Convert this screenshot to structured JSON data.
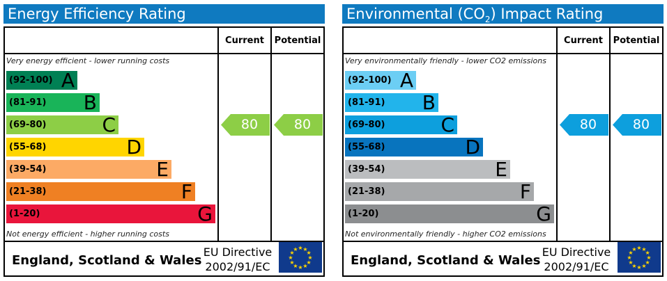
{
  "energy": {
    "title": "Energy Efficiency Rating",
    "col_current": "Current",
    "col_potential": "Potential",
    "top_text": "Very energy efficient - lower running costs",
    "bottom_text": "Not energy efficient - higher running costs",
    "bands": [
      {
        "range": "(92-100)",
        "letter": "A",
        "color": "#008054"
      },
      {
        "range": "(81-91)",
        "letter": "B",
        "color": "#19b459"
      },
      {
        "range": "(69-80)",
        "letter": "C",
        "color": "#8dce46"
      },
      {
        "range": "(55-68)",
        "letter": "D",
        "color": "#ffd500"
      },
      {
        "range": "(39-54)",
        "letter": "E",
        "color": "#fcaa65"
      },
      {
        "range": "(21-38)",
        "letter": "F",
        "color": "#ef8023"
      },
      {
        "range": "(1-20)",
        "letter": "G",
        "color": "#e9153b"
      }
    ],
    "current": {
      "value": "80",
      "band": "C",
      "color": "#8dce46"
    },
    "potential": {
      "value": "80",
      "band": "C",
      "color": "#8dce46"
    },
    "footer_country": "England, Scotland & Wales",
    "eu_line1": "EU Directive",
    "eu_line2": "2002/91/EC"
  },
  "environment": {
    "title_main": "Environmental (CO",
    "title_sub": "2",
    "title_end": ") Impact Rating",
    "col_current": "Current",
    "col_potential": "Potential",
    "top_text": "Very environmentally friendly - lower CO2 emissions",
    "bottom_text": "Not environmentally friendly - higher CO2 emissions",
    "bands": [
      {
        "range": "(92-100)",
        "letter": "A",
        "color": "#6ccef4"
      },
      {
        "range": "(81-91)",
        "letter": "B",
        "color": "#22b4eb"
      },
      {
        "range": "(69-80)",
        "letter": "C",
        "color": "#0d9fdd"
      },
      {
        "range": "(55-68)",
        "letter": "D",
        "color": "#0874be"
      },
      {
        "range": "(39-54)",
        "letter": "E",
        "color": "#bbbdbf"
      },
      {
        "range": "(21-38)",
        "letter": "F",
        "color": "#a6a8aa"
      },
      {
        "range": "(1-20)",
        "letter": "G",
        "color": "#8c8e90"
      }
    ],
    "current": {
      "value": "80",
      "band": "C",
      "color": "#0d9fdd"
    },
    "potential": {
      "value": "80",
      "band": "C",
      "color": "#0d9fdd"
    },
    "footer_country": "England, Scotland & Wales",
    "eu_line1": "EU Directive",
    "eu_line2": "2002/91/EC"
  }
}
